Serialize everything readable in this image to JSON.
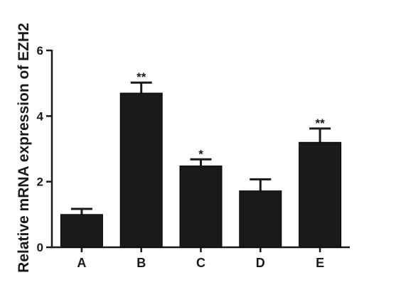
{
  "chart_data": {
    "type": "bar",
    "title": "",
    "xlabel": "",
    "ylabel": "Relative mRNA expression of EZH2",
    "categories": [
      "A",
      "B",
      "C",
      "D",
      "E"
    ],
    "values": [
      1.0,
      4.7,
      2.48,
      1.72,
      3.2
    ],
    "error_upper": [
      0.17,
      0.32,
      0.2,
      0.35,
      0.42
    ],
    "significance": [
      "",
      "**",
      "*",
      "",
      "**"
    ],
    "ylim": [
      0,
      6
    ],
    "yticks": [
      "0",
      "2",
      "4",
      "6"
    ],
    "grid": false,
    "legend": "none",
    "bar_color": "#1a1a1a"
  }
}
